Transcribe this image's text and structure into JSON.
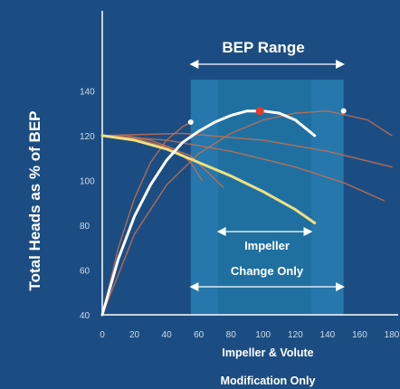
{
  "chart_data": {
    "type": "line",
    "ylabel": "Total Heads as % of BEP",
    "xlabel": "",
    "xlim": [
      0,
      180
    ],
    "ylim": [
      40,
      145
    ],
    "x_ticks": [
      0,
      20,
      40,
      60,
      80,
      100,
      120,
      140,
      160,
      180
    ],
    "y_ticks": [
      40,
      60,
      80,
      100,
      120,
      140
    ],
    "grid": false,
    "annotations": {
      "bep_range": "BEP Range",
      "impeller_change_line1": "Impeller",
      "impeller_change_line2": "Change Only",
      "volute_mod_line1": "Impeller & Volute",
      "volute_mod_line2": "Modification Only"
    },
    "regions": {
      "bep_range_x": [
        55,
        150
      ],
      "impeller_change_x": [
        72,
        130
      ]
    },
    "series": [
      {
        "role": "pump-curve-bright",
        "color": "#f0e080",
        "points": [
          [
            0,
            120
          ],
          [
            20,
            118
          ],
          [
            40,
            114
          ],
          [
            60,
            108
          ],
          [
            80,
            102
          ],
          [
            100,
            95
          ],
          [
            120,
            87
          ],
          [
            132,
            81
          ]
        ]
      },
      {
        "role": "system-curve-bright",
        "color": "#ffffff",
        "points": [
          [
            0,
            40
          ],
          [
            10,
            65
          ],
          [
            20,
            84
          ],
          [
            30,
            98
          ],
          [
            40,
            109
          ],
          [
            50,
            117
          ],
          [
            60,
            122
          ],
          [
            70,
            126
          ],
          [
            80,
            129
          ],
          [
            90,
            131
          ],
          [
            100,
            131
          ],
          [
            110,
            130
          ],
          [
            120,
            127
          ],
          [
            132,
            120
          ]
        ]
      },
      {
        "role": "system-curve-dim",
        "color": "#c8714e",
        "points": [
          [
            0,
            40
          ],
          [
            10,
            70
          ],
          [
            20,
            92
          ],
          [
            30,
            108
          ],
          [
            40,
            118
          ],
          [
            50,
            124
          ],
          [
            55,
            126
          ]
        ]
      },
      {
        "role": "pump-curve-dim",
        "color": "#c8714e",
        "points": [
          [
            0,
            120
          ],
          [
            20,
            119
          ],
          [
            40,
            115
          ],
          [
            55,
            111
          ],
          [
            65,
            104
          ],
          [
            75,
            97
          ]
        ]
      },
      {
        "role": "system-curve-dim",
        "color": "#c8714e",
        "points": [
          [
            0,
            40
          ],
          [
            20,
            76
          ],
          [
            40,
            98
          ],
          [
            60,
            112
          ],
          [
            80,
            121
          ],
          [
            100,
            127
          ],
          [
            120,
            130
          ],
          [
            140,
            131
          ],
          [
            165,
            127
          ],
          [
            180,
            120
          ]
        ]
      },
      {
        "role": "pump-curve-dim",
        "color": "#c8714e",
        "points": [
          [
            0,
            120
          ],
          [
            40,
            118
          ],
          [
            80,
            113
          ],
          [
            120,
            106
          ],
          [
            150,
            99
          ],
          [
            175,
            91
          ]
        ]
      },
      {
        "role": "pump-curve-dim",
        "color": "#c8714e",
        "points": [
          [
            0,
            120
          ],
          [
            15,
            120
          ],
          [
            30,
            118
          ],
          [
            45,
            114
          ],
          [
            55,
            108
          ],
          [
            62,
            100
          ]
        ]
      },
      {
        "role": "pump-curve-dim",
        "color": "#c8714e",
        "points": [
          [
            0,
            120
          ],
          [
            50,
            121
          ],
          [
            100,
            118
          ],
          [
            140,
            113
          ],
          [
            180,
            106
          ]
        ]
      }
    ],
    "markers": [
      {
        "x": 98,
        "y": 131,
        "color": "#e53a2a"
      },
      {
        "x": 55,
        "y": 126,
        "color": "#ffffff"
      },
      {
        "x": 150,
        "y": 131,
        "color": "#ffffff"
      }
    ]
  }
}
